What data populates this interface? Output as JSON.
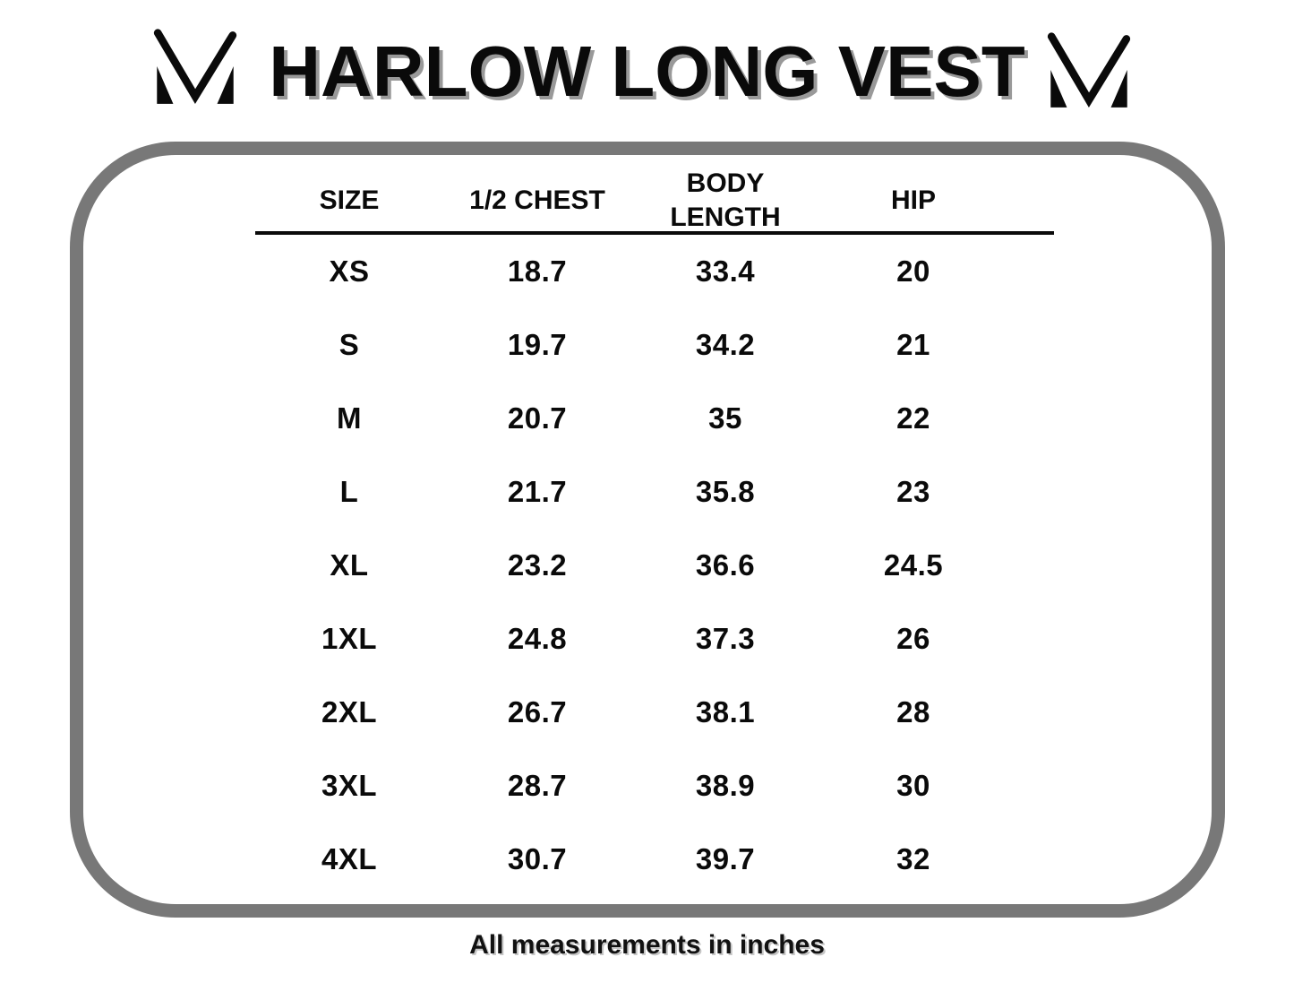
{
  "page": {
    "title": "HARLOW LONG VEST",
    "footer_note": "All measurements in inches",
    "brand_logo": "m-monogram-logo"
  },
  "colors": {
    "frame_gray": "#787878",
    "title_shadow_gray": "#999999",
    "text_black": "#0a0a0a"
  },
  "table": {
    "headers": [
      "SIZE",
      "1/2 CHEST",
      "BODY LENGTH",
      "HIP"
    ],
    "rows": [
      {
        "size": "XS",
        "chest": "18.7",
        "body_length": "33.4",
        "hip": "20"
      },
      {
        "size": "S",
        "chest": "19.7",
        "body_length": "34.2",
        "hip": "21"
      },
      {
        "size": "M",
        "chest": "20.7",
        "body_length": "35",
        "hip": "22"
      },
      {
        "size": "L",
        "chest": "21.7",
        "body_length": "35.8",
        "hip": "23"
      },
      {
        "size": "XL",
        "chest": "23.2",
        "body_length": "36.6",
        "hip": "24.5"
      },
      {
        "size": "1XL",
        "chest": "24.8",
        "body_length": "37.3",
        "hip": "26"
      },
      {
        "size": "2XL",
        "chest": "26.7",
        "body_length": "38.1",
        "hip": "28"
      },
      {
        "size": "3XL",
        "chest": "28.7",
        "body_length": "38.9",
        "hip": "30"
      },
      {
        "size": "4XL",
        "chest": "30.7",
        "body_length": "39.7",
        "hip": "32"
      }
    ]
  },
  "chart_data": {
    "type": "table",
    "title": "HARLOW LONG VEST",
    "columns": [
      "SIZE",
      "1/2 CHEST",
      "BODY LENGTH",
      "HIP"
    ],
    "rows": [
      [
        "XS",
        18.7,
        33.4,
        20
      ],
      [
        "S",
        19.7,
        34.2,
        21
      ],
      [
        "M",
        20.7,
        35,
        22
      ],
      [
        "L",
        21.7,
        35.8,
        23
      ],
      [
        "XL",
        23.2,
        36.6,
        24.5
      ],
      [
        "1XL",
        24.8,
        37.3,
        26
      ],
      [
        "2XL",
        26.7,
        38.1,
        28
      ],
      [
        "3XL",
        28.7,
        38.9,
        30
      ],
      [
        "4XL",
        30.7,
        39.7,
        32
      ]
    ],
    "note": "All measurements in inches",
    "units": "inches"
  }
}
